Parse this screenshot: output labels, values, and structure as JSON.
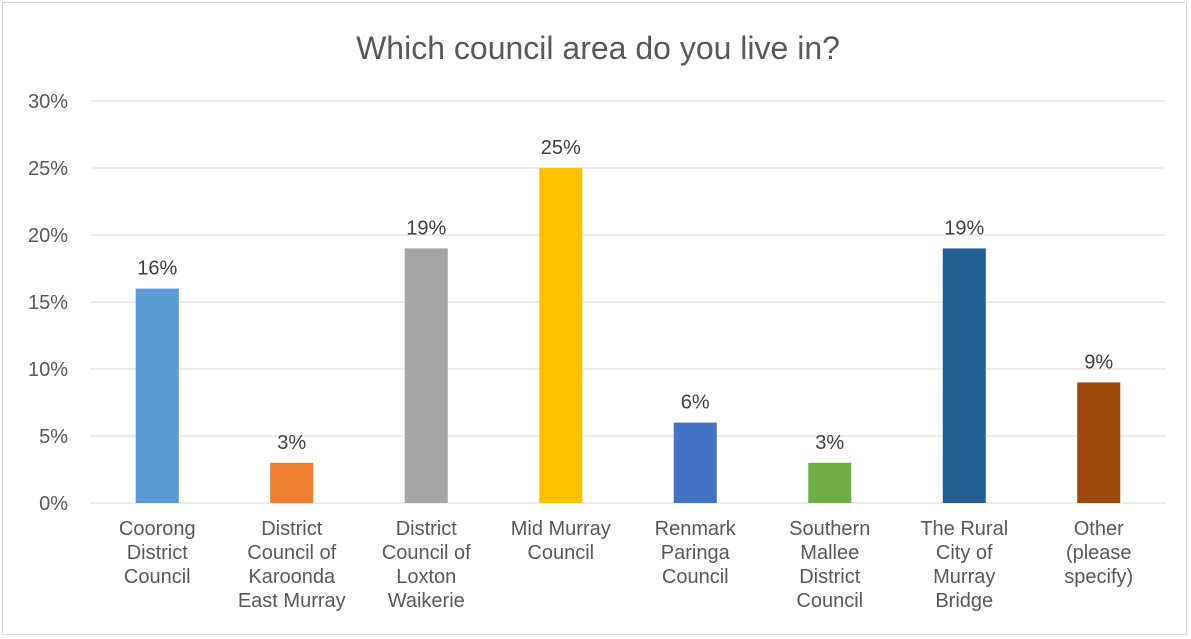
{
  "chart_data": {
    "type": "bar",
    "title": "Which council area do you live in?",
    "categories": [
      [
        "Coorong",
        "District",
        "Council"
      ],
      [
        "District",
        "Council of",
        "Karoonda",
        "East Murray"
      ],
      [
        "District",
        "Council of",
        "Loxton",
        "Waikerie"
      ],
      [
        "Mid Murray",
        "Council"
      ],
      [
        "Renmark",
        "Paringa",
        "Council"
      ],
      [
        "Southern",
        "Mallee",
        "District",
        "Council"
      ],
      [
        "The Rural",
        "City of",
        "Murray",
        "Bridge"
      ],
      [
        "Other",
        "(please",
        "specify)"
      ]
    ],
    "values": [
      16,
      3,
      19,
      25,
      6,
      3,
      19,
      9
    ],
    "value_labels": [
      "16%",
      "3%",
      "19%",
      "25%",
      "6%",
      "3%",
      "19%",
      "9%"
    ],
    "colors": [
      "#5b9bd5",
      "#ed7d31",
      "#a5a5a5",
      "#ffc000",
      "#4472c4",
      "#70ad47",
      "#255e91",
      "#9e480e"
    ],
    "yticks": [
      0,
      5,
      10,
      15,
      20,
      25,
      30
    ],
    "ytick_labels": [
      "0%",
      "5%",
      "10%",
      "15%",
      "20%",
      "25%",
      "30%"
    ],
    "ylim": [
      0,
      30
    ],
    "grid": true,
    "legend": false
  }
}
